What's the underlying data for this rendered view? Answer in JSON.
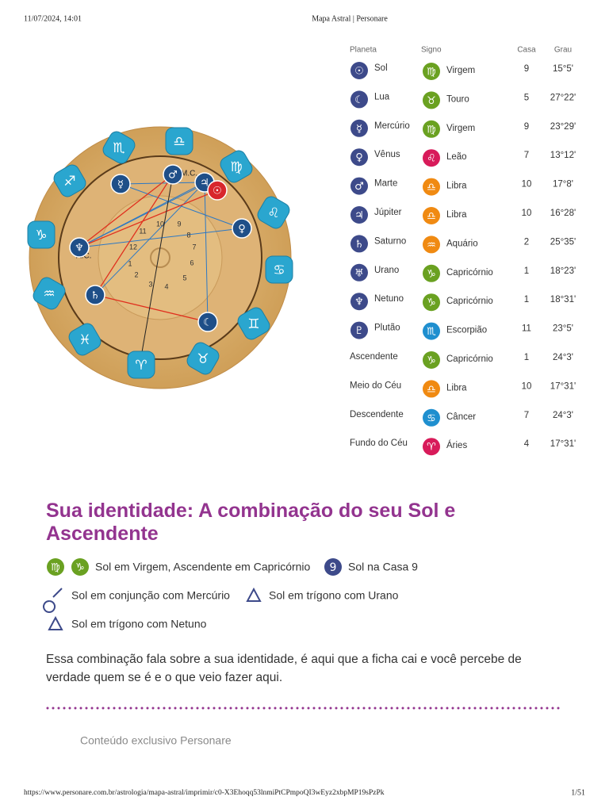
{
  "header": {
    "datetime": "11/07/2024, 14:01",
    "title": "Mapa Astral | Personare"
  },
  "wheel": {
    "sign_glyphs": [
      "♎",
      "♏",
      "♐",
      "♑",
      "♒",
      "♓",
      "♈",
      "♉",
      "♊",
      "♋",
      "♌",
      "♍"
    ],
    "planet_glyphs": [
      "☿",
      "♂",
      "♃",
      "☉",
      "♀",
      "☾",
      "♄",
      "♆"
    ],
    "house_numbers": [
      "11",
      "10",
      "9",
      "8",
      "12",
      "7",
      "1",
      "6",
      "2",
      "5",
      "3",
      "4"
    ],
    "mc_label": "M.C.",
    "ac_label": "A.C."
  },
  "table": {
    "columns": [
      "Planeta",
      "Signo",
      "Casa",
      "Grau"
    ],
    "rows": [
      {
        "planet": "Sol",
        "planet_glyph": "☉",
        "sign": "Virgem",
        "sign_glyph": "♍",
        "sign_color": "#6aa121",
        "house": "9",
        "degree": "15°5'"
      },
      {
        "planet": "Lua",
        "planet_glyph": "☾",
        "sign": "Touro",
        "sign_glyph": "♉",
        "sign_color": "#6aa121",
        "house": "5",
        "degree": "27°22'"
      },
      {
        "planet": "Mercúrio",
        "planet_glyph": "☿",
        "sign": "Virgem",
        "sign_glyph": "♍",
        "sign_color": "#6aa121",
        "house": "9",
        "degree": "23°29'"
      },
      {
        "planet": "Vênus",
        "planet_glyph": "♀",
        "sign": "Leão",
        "sign_glyph": "♌",
        "sign_color": "#d81b5a",
        "house": "7",
        "degree": "13°12'"
      },
      {
        "planet": "Marte",
        "planet_glyph": "♂",
        "sign": "Libra",
        "sign_glyph": "♎",
        "sign_color": "#f08a12",
        "house": "10",
        "degree": "17°8'"
      },
      {
        "planet": "Júpiter",
        "planet_glyph": "♃",
        "sign": "Libra",
        "sign_glyph": "♎",
        "sign_color": "#f08a12",
        "house": "10",
        "degree": "16°28'"
      },
      {
        "planet": "Saturno",
        "planet_glyph": "♄",
        "sign": "Aquário",
        "sign_glyph": "♒",
        "sign_color": "#f08a12",
        "house": "2",
        "degree": "25°35'"
      },
      {
        "planet": "Urano",
        "planet_glyph": "♅",
        "sign": "Capricórnio",
        "sign_glyph": "♑",
        "sign_color": "#6aa121",
        "house": "1",
        "degree": "18°23'"
      },
      {
        "planet": "Netuno",
        "planet_glyph": "♆",
        "sign": "Capricórnio",
        "sign_glyph": "♑",
        "sign_color": "#6aa121",
        "house": "1",
        "degree": "18°31'"
      },
      {
        "planet": "Plutão",
        "planet_glyph": "♇",
        "sign": "Escorpião",
        "sign_glyph": "♏",
        "sign_color": "#1f8fcf",
        "house": "11",
        "degree": "23°5'"
      },
      {
        "planet": "Ascendente",
        "sign": "Capricórnio",
        "sign_glyph": "♑",
        "sign_color": "#6aa121",
        "house": "1",
        "degree": "24°3'"
      },
      {
        "planet": "Meio do Céu",
        "sign": "Libra",
        "sign_glyph": "♎",
        "sign_color": "#f08a12",
        "house": "10",
        "degree": "17°31'"
      },
      {
        "planet": "Descendente",
        "sign": "Câncer",
        "sign_glyph": "♋",
        "sign_color": "#1f8fcf",
        "house": "7",
        "degree": "24°3'"
      },
      {
        "planet": "Fundo do Céu",
        "sign": "Áries",
        "sign_glyph": "♈",
        "sign_color": "#d81b5a",
        "house": "4",
        "degree": "17°31'"
      }
    ]
  },
  "section": {
    "title": "Sua identidade: A combinação do seu Sol e Ascendente",
    "tags": [
      {
        "glyphs": [
          "♍",
          "♑"
        ],
        "text": "Sol em Virgem, Ascendente em Capricórnio"
      },
      {
        "glyphs": [
          "9"
        ],
        "text": "Sol na Casa 9"
      },
      {
        "text": "Sol em conjunção com Mercúrio"
      },
      {
        "text": "Sol em trígono com Urano"
      },
      {
        "text": "Sol em trígono com Netuno"
      }
    ],
    "paragraph": "Essa combinação fala sobre a sua identidade, é aqui que a ficha cai e você percebe de verdade quem se é e o que veio fazer aqui.",
    "note": "Conteúdo exclusivo Personare"
  },
  "footer": {
    "url": "https://www.personare.com.br/astrologia/mapa-astral/imprimir/c0-X3Ehoqq53lnmiPtCPmpoQI3wEyz2xbpMP19sPzPk",
    "page": "1/51"
  }
}
